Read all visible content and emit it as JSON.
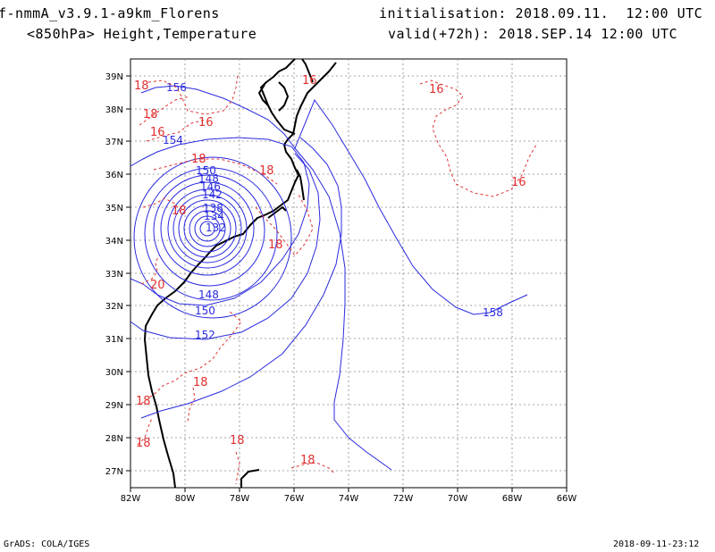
{
  "header": {
    "model_title": "f-nmmA_v3.9.1-a9km_Florens",
    "field_title": "<850hPa> Height,Temperature",
    "init_label": "initialisation: 2018.09.11.  12:00 UTC",
    "valid_label": "valid(+72h): 2018.SEP.14 12:00 UTC"
  },
  "footer": {
    "credit": "GrADS: COLA/IGES",
    "timestamp": "2018-09-11-23:12"
  },
  "map": {
    "x_ticks": [
      "82W",
      "80W",
      "78W",
      "76W",
      "74W",
      "72W",
      "70W",
      "68W",
      "66W"
    ],
    "y_ticks": [
      "39N",
      "38N",
      "37N",
      "36N",
      "35N",
      "34N",
      "33N",
      "32N",
      "31N",
      "30N",
      "29N",
      "28N",
      "27N"
    ],
    "height_contour_labels": [
      "156",
      "154",
      "150",
      "148",
      "146",
      "142",
      "138",
      "134",
      "132",
      "148",
      "150",
      "152",
      "158"
    ],
    "temperature_contour_labels": [
      "18",
      "16",
      "18",
      "16",
      "18",
      "18",
      "18",
      "18",
      "20",
      "18",
      "18",
      "18",
      "18",
      "18",
      "16",
      "16"
    ],
    "colors": {
      "height": "#2a2ae0",
      "temperature": "#e03030",
      "coast": "#000000",
      "grid": "#888888"
    }
  }
}
